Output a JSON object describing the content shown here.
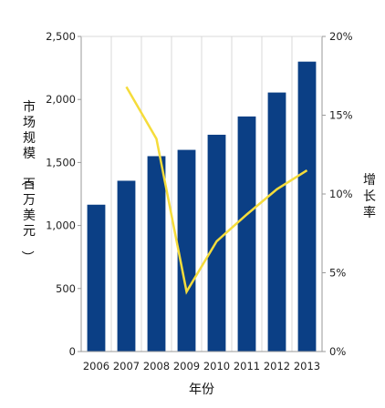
{
  "chart_data": {
    "type": "bar",
    "categories": [
      "2006",
      "2007",
      "2008",
      "2009",
      "2010",
      "2011",
      "2012",
      "2013"
    ],
    "series": [
      {
        "type": "bar",
        "axis": "left",
        "color": "#0b3f85",
        "values": [
          1165,
          1355,
          1550,
          1600,
          1720,
          1865,
          2055,
          2300
        ]
      },
      {
        "type": "line",
        "axis": "right",
        "color": "#f5dc3b",
        "values": [
          null,
          16.8,
          13.5,
          3.8,
          7.0,
          8.7,
          10.3,
          11.5
        ]
      }
    ],
    "xlabel": "年份",
    "ylabel_left": "市场规模（百万美元）",
    "ylabel_right": "增长率",
    "ylim_left": [
      0,
      2500
    ],
    "yticks_left": [
      "0",
      "500",
      "1,000",
      "1,500",
      "2,000",
      "2,500"
    ],
    "ylim_right": [
      0,
      20
    ],
    "yticks_right": [
      "0%",
      "5%",
      "10%",
      "15%",
      "20%"
    ],
    "grid": "vertical-only",
    "legend": "none"
  }
}
